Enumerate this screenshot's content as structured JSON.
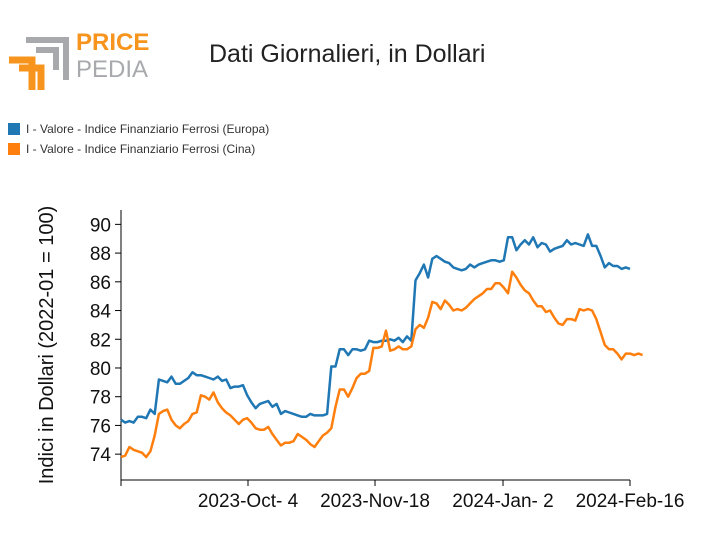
{
  "logo": {
    "word1": "PRICE",
    "word2": "PEDIA",
    "accent": "#f7941d",
    "gray": "#a7a9ac"
  },
  "chart_data": {
    "type": "line",
    "title": "Dati Giornalieri, in Dollari",
    "xlabel": "",
    "ylabel": "Indici in Dollari (2022-01 = 100)",
    "ylim": [
      72.2,
      91
    ],
    "yticks": [
      74,
      76,
      78,
      80,
      82,
      84,
      86,
      88,
      90
    ],
    "xticks": [
      "2023-Oct- 4",
      "2023-Nov-18",
      "2024-Jan- 2",
      "2024-Feb-16"
    ],
    "legend_position": "top-left",
    "grid": false,
    "series": [
      {
        "name": "I - Valore - Indice Finanziario Ferrosi (Europa)",
        "color": "#1f77b4",
        "values": [
          76.4,
          76.2,
          76.3,
          76.2,
          76.6,
          76.6,
          76.5,
          77.1,
          76.8,
          79.2,
          79.1,
          79.0,
          79.4,
          78.9,
          78.9,
          79.1,
          79.3,
          79.7,
          79.5,
          79.5,
          79.4,
          79.3,
          79.2,
          79.4,
          79.1,
          79.2,
          78.6,
          78.7,
          78.7,
          78.8,
          78.1,
          77.6,
          77.2,
          77.5,
          77.6,
          77.7,
          77.3,
          77.5,
          76.8,
          77.0,
          76.9,
          76.8,
          76.7,
          76.6,
          76.6,
          76.8,
          76.7,
          76.7,
          76.7,
          76.8,
          80.1,
          80.1,
          81.3,
          81.3,
          80.9,
          81.3,
          81.3,
          81.2,
          81.3,
          81.9,
          81.8,
          81.8,
          81.9,
          81.9,
          82.0,
          81.9,
          82.1,
          81.8,
          82.2,
          81.9,
          86.1,
          86.6,
          87.2,
          86.3,
          87.6,
          87.8,
          87.6,
          87.4,
          87.3,
          87.0,
          86.9,
          86.8,
          86.9,
          87.2,
          87.0,
          87.2,
          87.3,
          87.4,
          87.5,
          87.5,
          87.4,
          87.5,
          89.1,
          89.1,
          88.2,
          88.6,
          88.9,
          88.6,
          89.1,
          88.4,
          88.7,
          88.6,
          88.1,
          88.3,
          88.4,
          88.5,
          88.9,
          88.6,
          88.7,
          88.6,
          88.5,
          89.3,
          88.5,
          88.5,
          87.8,
          87.0,
          87.3,
          87.1,
          87.1,
          86.9,
          87.0,
          86.9
        ]
      },
      {
        "name": "I - Valore - Indice Finanziario Ferrosi (Cina)",
        "color": "#ff7f0e",
        "values": [
          73.8,
          73.9,
          74.5,
          74.3,
          74.2,
          74.1,
          73.8,
          74.2,
          75.3,
          76.8,
          77.0,
          77.1,
          76.4,
          76.0,
          75.8,
          76.1,
          76.3,
          76.8,
          76.9,
          78.1,
          78.0,
          77.8,
          78.3,
          77.6,
          77.2,
          76.9,
          76.7,
          76.4,
          76.1,
          76.4,
          76.5,
          76.2,
          75.8,
          75.7,
          75.7,
          75.9,
          75.4,
          75.0,
          74.6,
          74.8,
          74.8,
          74.9,
          75.4,
          75.2,
          75.0,
          74.7,
          74.5,
          74.9,
          75.3,
          75.5,
          75.8,
          77.3,
          78.5,
          78.5,
          78.0,
          78.6,
          79.3,
          79.6,
          79.6,
          79.8,
          81.4,
          81.4,
          81.5,
          82.6,
          81.2,
          81.3,
          81.5,
          81.3,
          81.3,
          81.5,
          82.7,
          83.0,
          82.8,
          83.5,
          84.6,
          84.5,
          84.1,
          84.7,
          84.4,
          84.0,
          84.1,
          84.0,
          84.2,
          84.5,
          84.8,
          85.0,
          85.2,
          85.5,
          85.5,
          85.9,
          85.9,
          85.6,
          85.2,
          86.7,
          86.3,
          85.8,
          85.4,
          85.2,
          84.7,
          84.3,
          84.3,
          83.9,
          84.0,
          83.5,
          83.1,
          83.0,
          83.4,
          83.4,
          83.3,
          84.1,
          84.0,
          84.1,
          84.0,
          83.4,
          82.5,
          81.6,
          81.3,
          81.3,
          81.0,
          80.6,
          81.0,
          81.0,
          80.9,
          81.0,
          80.9
        ]
      }
    ]
  }
}
